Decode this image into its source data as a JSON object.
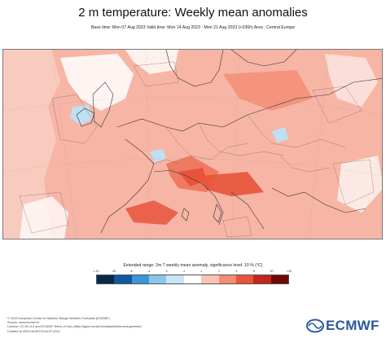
{
  "title": "2 m temperature: Weekly mean anomalies",
  "subtitle": "Base time: Mon 07 Aug 2023 Valid time: Mon 14 Aug 2023 - Mon 21 Aug 2023 (+336h) Area : Central Europe",
  "legend": {
    "title": "Extended range: 2m T weekly mean anomaly, significance level: 10 % (°C)",
    "ticks": [
      "<-10",
      "-10",
      "-6",
      "-4",
      "-2",
      "-1",
      "1",
      "2",
      "4",
      "6",
      "10",
      ">10"
    ],
    "colors": [
      "#082a4a",
      "#0f5a9c",
      "#3a96d6",
      "#8ac6ea",
      "#c9e4f5",
      "#ffffff",
      "#f9c3b4",
      "#f38c72",
      "#e8533b",
      "#c3261b",
      "#6e0a0a"
    ]
  },
  "map": {
    "land_color": "#f5a08e",
    "strong_color": "#e8533b",
    "cool_color": "#bfe0f2",
    "neutral_color": "#ffffff"
  },
  "footer": {
    "line1": "© 2023 European Centre for Medium-Range Weather Forecasts (ECMWF)",
    "line2": "Source: www.ecmwf.int",
    "line3": "Licence: CC-BY-4.0 and ECMWF Terms of Use (https://apps.ecmwf.int/datasets/licences/general/)",
    "line4": "Created at 2023-08-08T20:40:57.4012"
  },
  "logo": {
    "text": "ECMWF"
  }
}
